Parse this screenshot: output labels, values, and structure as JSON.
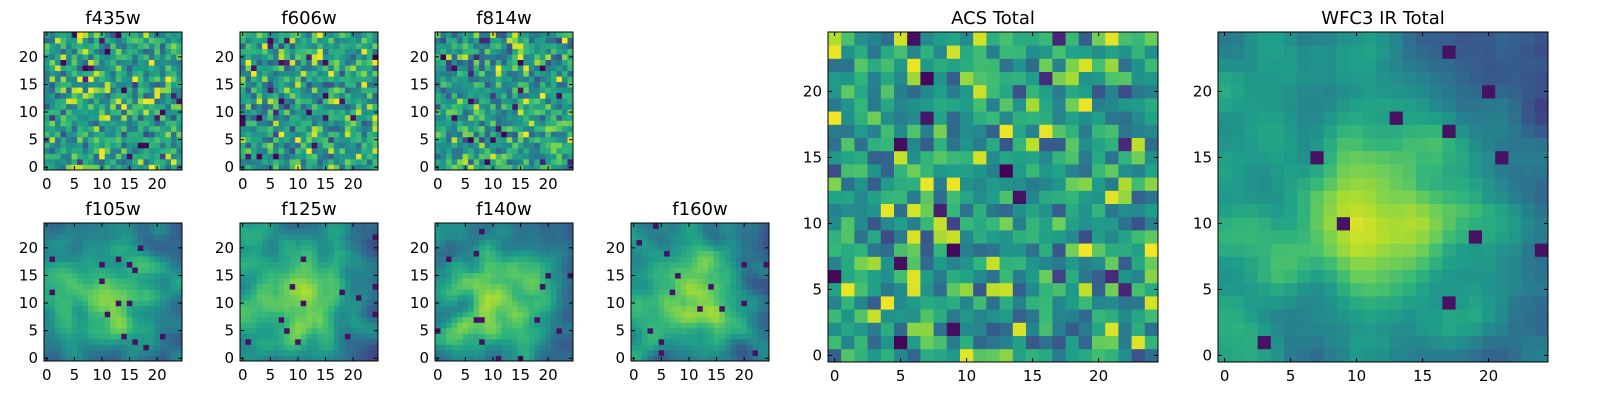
{
  "chart_data": [
    {
      "type": "heatmap",
      "title": "f435w",
      "grid_size": [
        25,
        25
      ],
      "colormap": "viridis",
      "x_ticks": [
        "0",
        "5",
        "10",
        "15",
        "20"
      ],
      "y_ticks": [
        "0",
        "5",
        "10",
        "15",
        "20"
      ],
      "xlim": [
        0,
        24
      ],
      "ylim": [
        0,
        24
      ],
      "texture": "pixel noise",
      "grid": false
    },
    {
      "type": "heatmap",
      "title": "f606w",
      "grid_size": [
        25,
        25
      ],
      "colormap": "viridis",
      "x_ticks": [
        "0",
        "5",
        "10",
        "15",
        "20"
      ],
      "y_ticks": [
        "0",
        "5",
        "10",
        "15",
        "20"
      ],
      "xlim": [
        0,
        24
      ],
      "ylim": [
        0,
        24
      ],
      "texture": "pixel noise",
      "grid": false
    },
    {
      "type": "heatmap",
      "title": "f814w",
      "grid_size": [
        25,
        25
      ],
      "colormap": "viridis",
      "x_ticks": [
        "0",
        "5",
        "10",
        "15",
        "20"
      ],
      "y_ticks": [
        "0",
        "5",
        "10",
        "15",
        "20"
      ],
      "xlim": [
        0,
        24
      ],
      "ylim": [
        0,
        24
      ],
      "texture": "pixel noise",
      "grid": false
    },
    {
      "type": "heatmap",
      "title": "f105w",
      "grid_size": [
        25,
        25
      ],
      "colormap": "viridis",
      "x_ticks": [
        "0",
        "5",
        "10",
        "15",
        "20"
      ],
      "y_ticks": [
        "0",
        "5",
        "10",
        "15",
        "20"
      ],
      "xlim": [
        0,
        24
      ],
      "ylim": [
        0,
        24
      ],
      "texture": "smooth with central bright blob",
      "grid": false
    },
    {
      "type": "heatmap",
      "title": "f125w",
      "grid_size": [
        25,
        25
      ],
      "colormap": "viridis",
      "x_ticks": [
        "0",
        "5",
        "10",
        "15",
        "20"
      ],
      "y_ticks": [
        "0",
        "5",
        "10",
        "15",
        "20"
      ],
      "xlim": [
        0,
        24
      ],
      "ylim": [
        0,
        24
      ],
      "texture": "smooth with central bright blob",
      "grid": false
    },
    {
      "type": "heatmap",
      "title": "f140w",
      "grid_size": [
        25,
        25
      ],
      "colormap": "viridis",
      "x_ticks": [
        "0",
        "5",
        "10",
        "15",
        "20"
      ],
      "y_ticks": [
        "0",
        "5",
        "10",
        "15",
        "20"
      ],
      "xlim": [
        0,
        24
      ],
      "ylim": [
        0,
        24
      ],
      "texture": "smooth with central bright blob",
      "grid": false
    },
    {
      "type": "heatmap",
      "title": "f160w",
      "grid_size": [
        25,
        25
      ],
      "colormap": "viridis",
      "x_ticks": [
        "0",
        "5",
        "10",
        "15",
        "20"
      ],
      "y_ticks": [
        "0",
        "5",
        "10",
        "15",
        "20"
      ],
      "xlim": [
        0,
        24
      ],
      "ylim": [
        0,
        24
      ],
      "texture": "smooth with central bright blob",
      "grid": false
    },
    {
      "type": "heatmap",
      "title": "ACS Total",
      "grid_size": [
        25,
        25
      ],
      "colormap": "viridis",
      "x_ticks": [
        "0",
        "5",
        "10",
        "15",
        "20"
      ],
      "y_ticks": [
        "0",
        "5",
        "10",
        "15",
        "20"
      ],
      "xlim": [
        0,
        24
      ],
      "ylim": [
        0,
        24
      ],
      "texture": "pixel noise",
      "grid": false
    },
    {
      "type": "heatmap",
      "title": "WFC3 IR Total",
      "grid_size": [
        25,
        25
      ],
      "colormap": "viridis",
      "x_ticks": [
        "0",
        "5",
        "10",
        "15",
        "20"
      ],
      "y_ticks": [
        "0",
        "5",
        "10",
        "15",
        "20"
      ],
      "xlim": [
        0,
        24
      ],
      "ylim": [
        0,
        24
      ],
      "texture": "smooth with central bright blob",
      "grid": false
    }
  ],
  "colors": {
    "viridis_dark": "#440154",
    "viridis_blue": "#31688e",
    "viridis_teal": "#21918c",
    "viridis_green": "#5ec962",
    "viridis_yellow": "#fde725"
  }
}
